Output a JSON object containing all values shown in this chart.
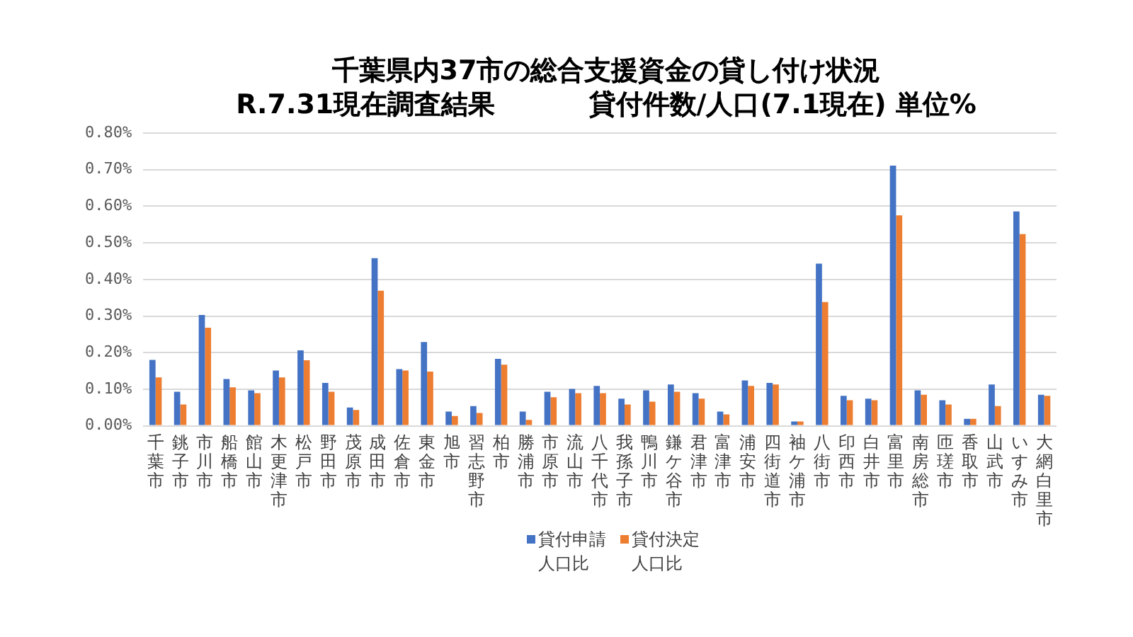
{
  "chart_data": {
    "type": "bar",
    "title": "千葉県内37市の総合支援資金の貸し付け状況",
    "subtitle": "R.7.31現在調査結果          貸付件数/人口(7.1現在) 単位%",
    "categories": [
      "千葉市",
      "銚子市",
      "市川市",
      "船橋市",
      "館山市",
      "木更津市",
      "松戸市",
      "野田市",
      "茂原市",
      "成田市",
      "佐倉市",
      "東金市",
      "旭市",
      "習志野市",
      "柏市",
      "勝浦市",
      "市原市",
      "流山市",
      "八千代市",
      "我孫子市",
      "鴨川市",
      "鎌ケ谷市",
      "君津市",
      "富津市",
      "浦安市",
      "四街道市",
      "袖ケ浦市",
      "八街市",
      "印西市",
      "白井市",
      "富里市",
      "南房総市",
      "匝瑳市",
      "香取市",
      "山武市",
      "いすみ市",
      "大網白里市"
    ],
    "series": [
      {
        "name": "貸付申請人口比",
        "color": "#4472c4",
        "values": [
          0.18,
          0.093,
          0.303,
          0.128,
          0.097,
          0.151,
          0.206,
          0.117,
          0.05,
          0.458,
          0.155,
          0.229,
          0.039,
          0.054,
          0.183,
          0.039,
          0.093,
          0.101,
          0.109,
          0.074,
          0.097,
          0.113,
          0.089,
          0.039,
          0.124,
          0.117,
          0.012,
          0.443,
          0.082,
          0.074,
          0.711,
          0.097,
          0.07,
          0.019,
          0.113,
          0.586,
          0.085
        ]
      },
      {
        "name": "貸付決定人口比",
        "color": "#ed7d31",
        "values": [
          0.132,
          0.058,
          0.268,
          0.105,
          0.089,
          0.132,
          0.179,
          0.093,
          0.043,
          0.369,
          0.151,
          0.148,
          0.027,
          0.035,
          0.167,
          0.016,
          0.078,
          0.089,
          0.089,
          0.058,
          0.066,
          0.093,
          0.074,
          0.031,
          0.109,
          0.113,
          0.012,
          0.338,
          0.07,
          0.07,
          0.575,
          0.085,
          0.058,
          0.019,
          0.054,
          0.524,
          0.082
        ]
      }
    ],
    "ylim": [
      0,
      0.8
    ],
    "yticks": [
      {
        "value": 0,
        "label": "0.00%"
      },
      {
        "value": 0.1,
        "label": "0.10%"
      },
      {
        "value": 0.2,
        "label": "0.20%"
      },
      {
        "value": 0.3,
        "label": "0.30%"
      },
      {
        "value": 0.4,
        "label": "0.40%"
      },
      {
        "value": 0.5,
        "label": "0.50%"
      },
      {
        "value": 0.6,
        "label": "0.60%"
      },
      {
        "value": 0.7,
        "label": "0.70%"
      },
      {
        "value": 0.8,
        "label": "0.80%"
      }
    ],
    "grid": "y",
    "legend": "bottom"
  }
}
